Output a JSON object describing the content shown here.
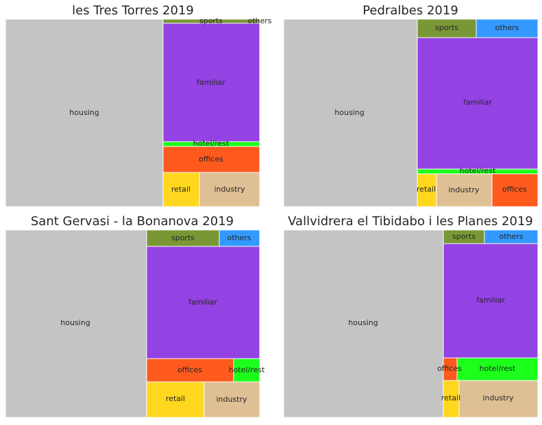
{
  "chart_data": [
    {
      "type": "treemap",
      "title": "les Tres Torres 2019",
      "cells": [
        {
          "label": "housing",
          "color": "#c4c4c4",
          "value": 62.3
        },
        {
          "label": "sports",
          "color": "#7a9736",
          "value": 0.73
        },
        {
          "label": "others",
          "color": "#3399ff",
          "value": 0.0
        },
        {
          "label": "familiar",
          "color": "#9342e3",
          "value": 23.9
        },
        {
          "label": "hotel/rest",
          "color": "#1bff1b",
          "value": 1.1
        },
        {
          "label": "offices",
          "color": "#ff5a1e",
          "value": 5.0
        },
        {
          "label": "retail",
          "color": "#ffd71e",
          "value": 2.6
        },
        {
          "label": "industry",
          "color": "#dfbf94",
          "value": 4.3
        }
      ]
    },
    {
      "type": "treemap",
      "title": "Pedralbes 2019",
      "cells": [
        {
          "label": "housing",
          "color": "#c4c4c4",
          "value": 52.5
        },
        {
          "label": "sports",
          "color": "#7a9736",
          "value": 4.2
        },
        {
          "label": "others",
          "color": "#3399ff",
          "value": 4.2
        },
        {
          "label": "familiar",
          "color": "#9342e3",
          "value": 27.3
        },
        {
          "label": "hotel/rest",
          "color": "#1bff1b",
          "value": 1.0
        },
        {
          "label": "retail",
          "color": "#ffd71e",
          "value": 1.2
        },
        {
          "label": "industry",
          "color": "#dfbf94",
          "value": 3.6
        },
        {
          "label": "offices",
          "color": "#ff5a1e",
          "value": 3.0
        }
      ]
    },
    {
      "type": "treemap",
      "title": "Sant Gervasi - la Bonanova 2019",
      "cells": [
        {
          "label": "housing",
          "color": "#c4c4c4",
          "value": 55.7
        },
        {
          "label": "sports",
          "color": "#7a9736",
          "value": 4.7
        },
        {
          "label": "others",
          "color": "#3399ff",
          "value": 2.7
        },
        {
          "label": "familiar",
          "color": "#9342e3",
          "value": 21.0
        },
        {
          "label": "offices",
          "color": "#ff5a1e",
          "value": 4.3
        },
        {
          "label": "hotel/rest",
          "color": "#1bff1b",
          "value": 1.3
        },
        {
          "label": "retail",
          "color": "#ffd71e",
          "value": 5.0
        },
        {
          "label": "industry",
          "color": "#dfbf94",
          "value": 5.0
        }
      ]
    },
    {
      "type": "treemap",
      "title": "Vallvidrera el Tibidabo i les Planes 2019",
      "cells": [
        {
          "label": "housing",
          "color": "#c4c4c4",
          "value": 62.7
        },
        {
          "label": "sports",
          "color": "#7a9736",
          "value": 2.0
        },
        {
          "label": "others",
          "color": "#3399ff",
          "value": 2.6
        },
        {
          "label": "familiar",
          "color": "#9342e3",
          "value": 18.6
        },
        {
          "label": "offices",
          "color": "#ff5a1e",
          "value": 0.8
        },
        {
          "label": "hotel/rest",
          "color": "#1bff1b",
          "value": 4.0
        },
        {
          "label": "retail",
          "color": "#ffd71e",
          "value": 1.2
        },
        {
          "label": "industry",
          "color": "#dfbf94",
          "value": 7.8
        }
      ]
    }
  ]
}
